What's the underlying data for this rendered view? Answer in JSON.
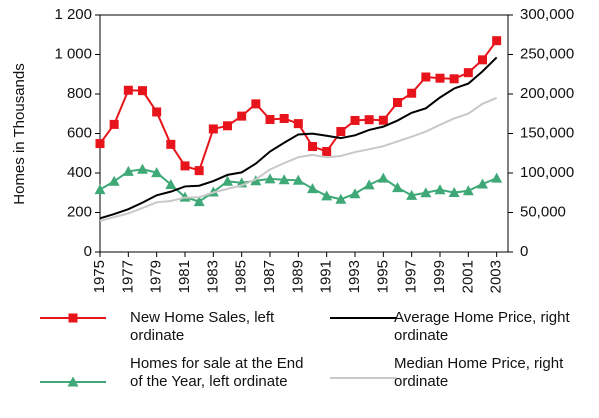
{
  "chart_data": {
    "type": "line",
    "y_label": "Homes in Thousands",
    "x": [
      1975,
      1976,
      1977,
      1978,
      1979,
      1980,
      1981,
      1982,
      1983,
      1984,
      1985,
      1986,
      1987,
      1988,
      1989,
      1990,
      1991,
      1992,
      1993,
      1994,
      1995,
      1996,
      1997,
      1998,
      1999,
      2000,
      2001,
      2002,
      2003
    ],
    "xlim": [
      1975,
      2003.8
    ],
    "xticks": [
      1975,
      1977,
      1979,
      1981,
      1983,
      1985,
      1987,
      1989,
      1991,
      1993,
      1995,
      1997,
      1999,
      2001,
      2003
    ],
    "ylim": [
      0,
      1200
    ],
    "yticks": [
      0,
      200,
      400,
      600,
      800,
      {
        "value": 1000,
        "label": "1 000"
      },
      {
        "value": 1200,
        "label": "1 200"
      }
    ],
    "y2lim": [
      0,
      300000
    ],
    "y2ticks": [
      0,
      {
        "value": 50000,
        "label": "50,000"
      },
      {
        "value": 100000,
        "label": "100,000"
      },
      {
        "value": 150000,
        "label": "150,000"
      },
      {
        "value": 200000,
        "label": "200,000"
      },
      {
        "value": 250000,
        "label": "250,000"
      },
      {
        "value": 300000,
        "label": "300,000"
      }
    ],
    "series": [
      {
        "name": "New Home Sales, left ordinate",
        "color": "#e8141b",
        "marker": "square",
        "values": [
          549,
          646,
          819,
          817,
          709,
          545,
          436,
          412,
          623,
          639,
          688,
          750,
          671,
          676,
          650,
          534,
          509,
          610,
          666,
          670,
          667,
          757,
          804,
          886,
          880,
          877,
          908,
          973,
          1070
        ]
      },
      {
        "name": "Homes for sale at the End of the Year, left ordinate",
        "color": "#3fa877",
        "marker": "triangle",
        "values": [
          316,
          358,
          408,
          419,
          402,
          342,
          278,
          255,
          304,
          358,
          350,
          361,
          370,
          366,
          363,
          321,
          284,
          267,
          295,
          340,
          374,
          326,
          287,
          300,
          315,
          301,
          310,
          344,
          374
        ]
      },
      {
        "name": "Average Home Price, right ordinate",
        "color": "#000000",
        "axis": "y2",
        "values": [
          42600,
          48000,
          54200,
          62500,
          71800,
          76400,
          83000,
          83900,
          89800,
          97600,
          100800,
          111900,
          127200,
          138300,
          148800,
          149800,
          147200,
          144100,
          147700,
          154500,
          158700,
          166400,
          176200,
          181900,
          195600,
          207000,
          213200,
          228700,
          246300
        ]
      },
      {
        "name": "Median Home Price, right ordinate",
        "color": "#c8c8c8",
        "axis": "y2",
        "values": [
          39300,
          44200,
          48800,
          55700,
          62900,
          64600,
          68900,
          69300,
          75300,
          79900,
          84300,
          92000,
          104500,
          112500,
          120000,
          122900,
          120000,
          121500,
          126500,
          130000,
          133900,
          140000,
          146000,
          152500,
          161000,
          169000,
          175200,
          187600,
          195000
        ]
      }
    ]
  }
}
